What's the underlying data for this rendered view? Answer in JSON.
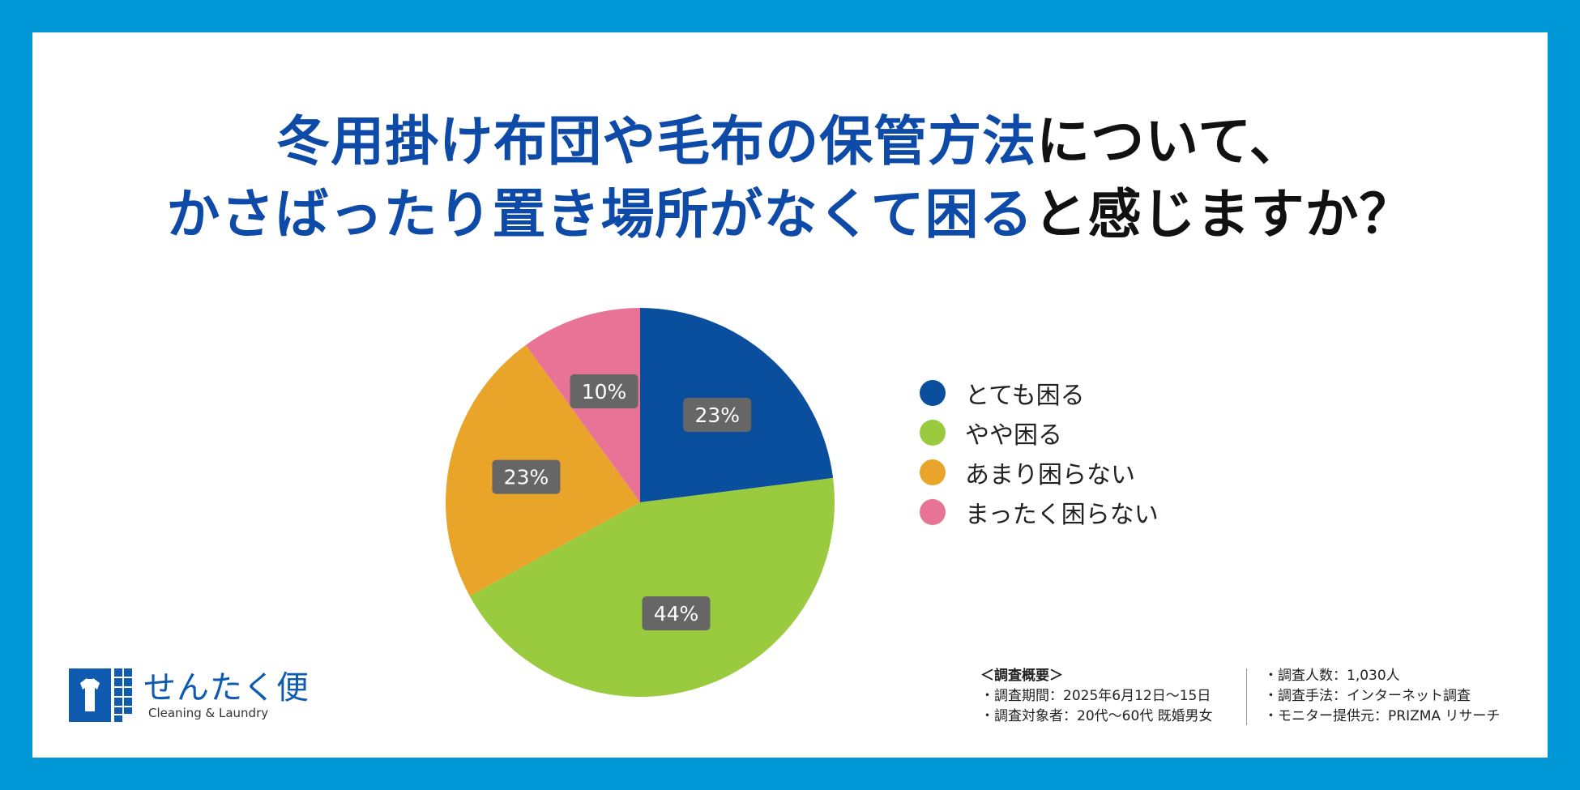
{
  "title": {
    "line1_highlight": "冬用掛け布団や毛布の保管方法",
    "line1_plain": "について、",
    "line2_highlight": "かさばったり置き場所がなくて困る",
    "line2_plain": "と感じますか？"
  },
  "chart_data": {
    "type": "pie",
    "categories": [
      "とても困る",
      "やや困る",
      "あまり困らない",
      "まったく困らない"
    ],
    "values": [
      23,
      44,
      23,
      10
    ],
    "data_labels": [
      "23%",
      "44%",
      "23%",
      "10%"
    ],
    "colors": [
      "#0a4f9e",
      "#9acb3f",
      "#e9a529",
      "#e87397"
    ],
    "start_angle": "12 o'clock",
    "direction": "clockwise",
    "legend_position": "right"
  },
  "legend": {
    "items": [
      {
        "label": "とても困る",
        "color": "#0a4f9e"
      },
      {
        "label": "やや困る",
        "color": "#9acb3f"
      },
      {
        "label": "あまり困らない",
        "color": "#e9a529"
      },
      {
        "label": "まったく困らない",
        "color": "#e87397"
      }
    ]
  },
  "logo": {
    "name": "せんたく便",
    "subtitle": "Cleaning & Laundry"
  },
  "survey": {
    "heading": "＜調査概要＞",
    "left": [
      "・調査期間：2025年6月12日～15日",
      "・調査対象者：20代～60代 既婚男女"
    ],
    "right": [
      "・調査人数：1,030人",
      "・調査手法：インターネット調査",
      "・モニター提供元：PRIZMA リサーチ"
    ]
  },
  "colors": {
    "frame": "#0097d6",
    "title_highlight": "#0e4aa8",
    "label_box": "#666666"
  }
}
